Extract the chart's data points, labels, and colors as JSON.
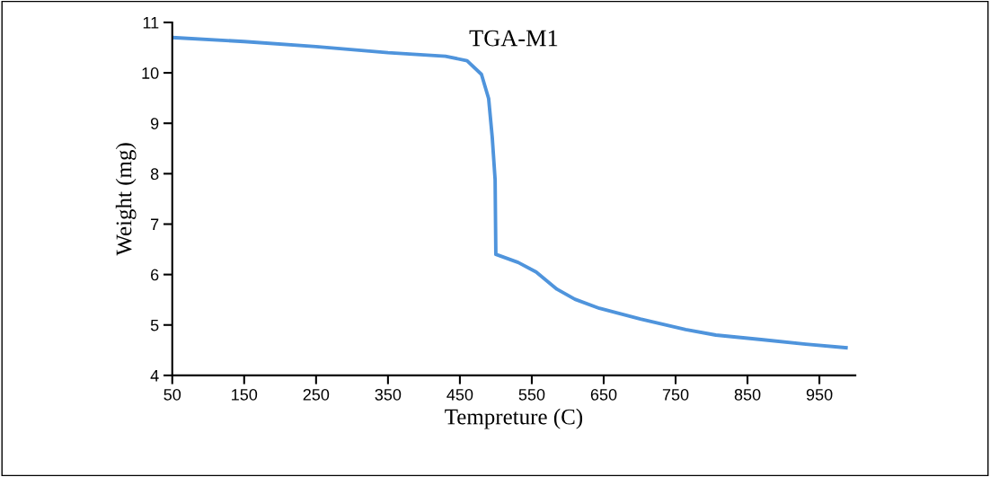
{
  "chart_data": {
    "type": "line",
    "title": "TGA-M1",
    "xlabel": "Tempreture (C)",
    "ylabel": "Weight (mg)",
    "xlim": [
      50,
      1000
    ],
    "xticks": [
      50,
      150,
      250,
      350,
      450,
      550,
      650,
      750,
      850,
      950
    ],
    "ylim": [
      4,
      11
    ],
    "yticks": [
      4,
      5,
      6,
      7,
      8,
      9,
      10,
      11
    ],
    "grid": false,
    "legend": false,
    "marker": "none",
    "line_style": "solid",
    "series": [
      {
        "color": "#4f94dc",
        "x": [
          50,
          150,
          250,
          350,
          430,
          460,
          480,
          490,
          495,
          499,
          500,
          531,
          556,
          585,
          610,
          644,
          701,
          764,
          806,
          869,
          931,
          987
        ],
        "values": [
          10.7,
          10.62,
          10.52,
          10.4,
          10.33,
          10.24,
          9.97,
          9.49,
          8.72,
          7.88,
          6.4,
          6.24,
          6.05,
          5.71,
          5.51,
          5.33,
          5.12,
          4.91,
          4.8,
          4.71,
          4.62,
          4.55
        ]
      }
    ]
  }
}
